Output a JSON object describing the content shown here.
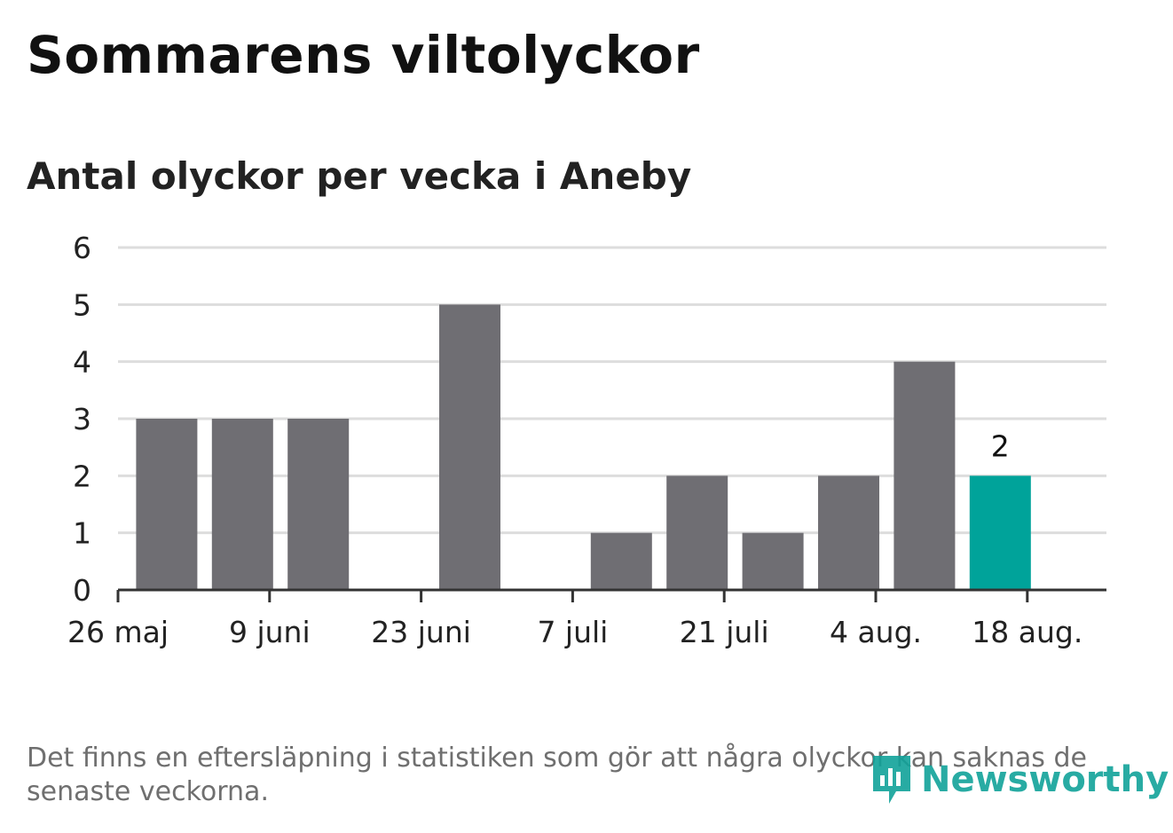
{
  "header": {
    "title": "Sommarens viltolyckor",
    "subtitle": "Antal olyckor per vecka i Aneby"
  },
  "footer": {
    "note": "Det finns en eftersläpning i statistiken som gör att några olyckor kan saknas de senaste veckorna.",
    "logo_text": "Newsworthy"
  },
  "colors": {
    "bar": "#6f6e73",
    "highlight": "#00a39a",
    "grid": "#dddddd",
    "axis": "#333333",
    "text": "#222222"
  },
  "chart_data": {
    "type": "bar",
    "title": "Sommarens viltolyckor",
    "subtitle": "Antal olyckor per vecka i Aneby",
    "x_tick_labels": [
      "26 maj",
      "9 juni",
      "23 juni",
      "7 juli",
      "21 juli",
      "4 aug.",
      "18 aug."
    ],
    "y_ticks": [
      0,
      1,
      2,
      3,
      4,
      5,
      6
    ],
    "ylim": [
      0,
      6
    ],
    "grid": true,
    "weeks": [
      "2019-06-03",
      "2019-06-10",
      "2019-06-17",
      "2019-06-24",
      "2019-07-01",
      "2019-07-08",
      "2019-07-15",
      "2019-07-22",
      "2019-07-29",
      "2019-08-05",
      "2019-08-12",
      "2019-08-19"
    ],
    "values": [
      3,
      3,
      3,
      0,
      5,
      0,
      1,
      2,
      1,
      2,
      4,
      2
    ],
    "highlight_last": true,
    "data_labels": [
      {
        "week": "2019-08-19",
        "text": "2"
      }
    ]
  }
}
